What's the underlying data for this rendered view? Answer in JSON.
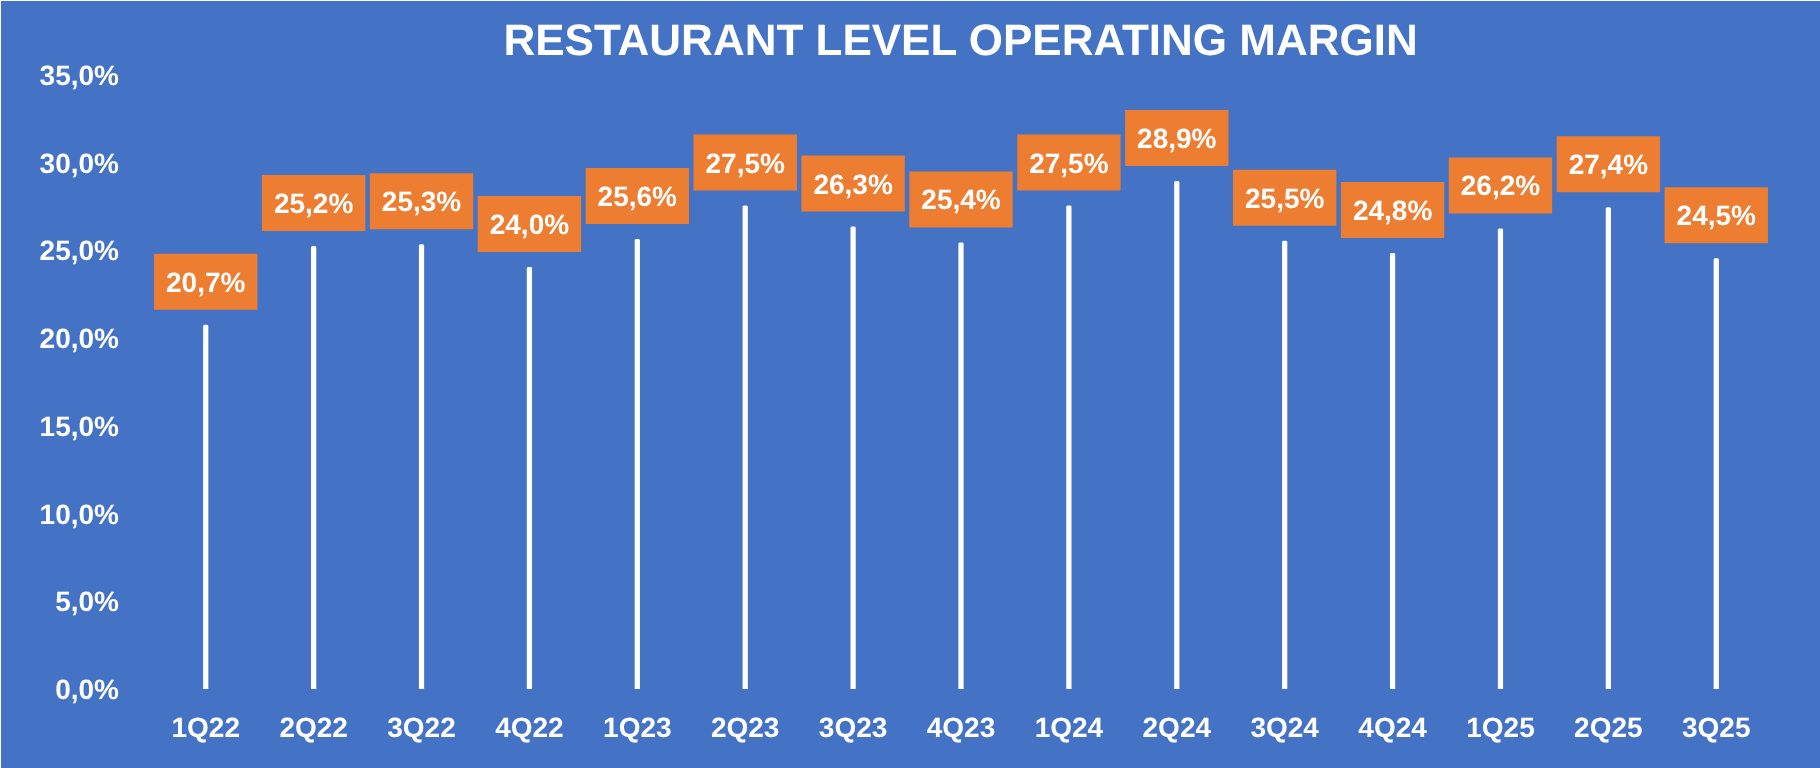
{
  "chart_data": {
    "type": "bar",
    "title": "RESTAURANT LEVEL OPERATING MARGIN",
    "categories": [
      "1Q22",
      "2Q22",
      "3Q22",
      "4Q22",
      "1Q23",
      "2Q23",
      "3Q23",
      "4Q23",
      "1Q24",
      "2Q24",
      "3Q24",
      "4Q24",
      "1Q25",
      "2Q25",
      "3Q25"
    ],
    "values": [
      20.7,
      25.2,
      25.3,
      24.0,
      25.6,
      27.5,
      26.3,
      25.4,
      27.5,
      28.9,
      25.5,
      24.8,
      26.2,
      27.4,
      24.5
    ],
    "value_labels": [
      "20,7%",
      "25,2%",
      "25,3%",
      "24,0%",
      "25,6%",
      "27,5%",
      "26,3%",
      "25,4%",
      "27,5%",
      "28,9%",
      "25,5%",
      "24,8%",
      "26,2%",
      "27,4%",
      "24,5%"
    ],
    "color": "#ffffff",
    "ylim": [
      0,
      35
    ],
    "yticks": [
      {
        "value": 0,
        "label": "0,0%"
      },
      {
        "value": 5,
        "label": "5,0%"
      },
      {
        "value": 10,
        "label": "10,0%"
      },
      {
        "value": 15,
        "label": "15,0%"
      },
      {
        "value": 20,
        "label": "20,0%"
      },
      {
        "value": 25,
        "label": "25,0%"
      },
      {
        "value": 30,
        "label": "30,0%"
      },
      {
        "value": 35,
        "label": "35,0%"
      }
    ],
    "grid": false
  }
}
